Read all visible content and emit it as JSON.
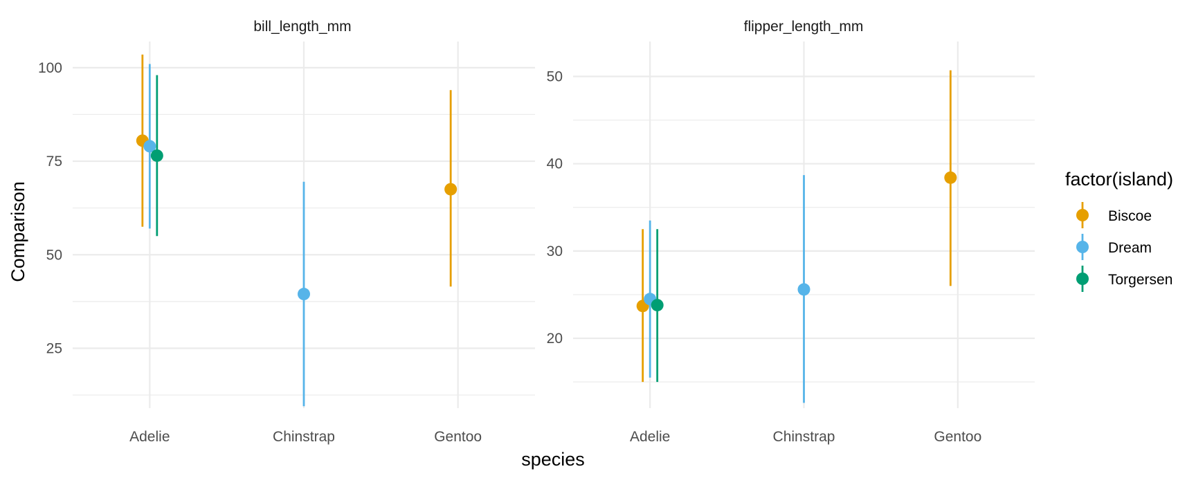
{
  "chart_data": {
    "type": "scatter",
    "xlabel": "species",
    "ylabel": "Comparison",
    "categories": [
      "Adelie",
      "Chinstrap",
      "Gentoo"
    ],
    "legend": {
      "title": "factor(island)",
      "position": "right",
      "entries": [
        {
          "name": "Biscoe",
          "color": "#E69F00"
        },
        {
          "name": "Dream",
          "color": "#56B4E9"
        },
        {
          "name": "Torgersen",
          "color": "#009E73"
        }
      ]
    },
    "panels": [
      {
        "title": "bill_length_mm",
        "ylim": [
          9,
          107
        ],
        "yticks": [
          25,
          50,
          75,
          100
        ],
        "ytick_labels": [
          "25",
          "50",
          "75",
          "100"
        ],
        "points": [
          {
            "species": "Adelie",
            "island": "Biscoe",
            "estimate": 80.5,
            "low": 57.5,
            "high": 103.5
          },
          {
            "species": "Adelie",
            "island": "Dream",
            "estimate": 79.0,
            "low": 57.0,
            "high": 101.0
          },
          {
            "species": "Adelie",
            "island": "Torgersen",
            "estimate": 76.5,
            "low": 55.0,
            "high": 98.0
          },
          {
            "species": "Chinstrap",
            "island": "Dream",
            "estimate": 39.5,
            "low": 9.5,
            "high": 69.5
          },
          {
            "species": "Gentoo",
            "island": "Biscoe",
            "estimate": 67.5,
            "low": 41.5,
            "high": 94.0
          }
        ]
      },
      {
        "title": "flipper_length_mm",
        "ylim": [
          12,
          54
        ],
        "yticks": [
          20,
          30,
          40,
          50
        ],
        "ytick_labels": [
          "20",
          "30",
          "40",
          "50"
        ],
        "points": [
          {
            "species": "Adelie",
            "island": "Biscoe",
            "estimate": 23.7,
            "low": 15.0,
            "high": 32.5
          },
          {
            "species": "Adelie",
            "island": "Dream",
            "estimate": 24.5,
            "low": 15.5,
            "high": 33.5
          },
          {
            "species": "Adelie",
            "island": "Torgersen",
            "estimate": 23.8,
            "low": 15.0,
            "high": 32.5
          },
          {
            "species": "Chinstrap",
            "island": "Dream",
            "estimate": 25.6,
            "low": 12.6,
            "high": 38.7
          },
          {
            "species": "Gentoo",
            "island": "Biscoe",
            "estimate": 38.4,
            "low": 26.0,
            "high": 50.7
          }
        ]
      }
    ],
    "grid": true
  }
}
